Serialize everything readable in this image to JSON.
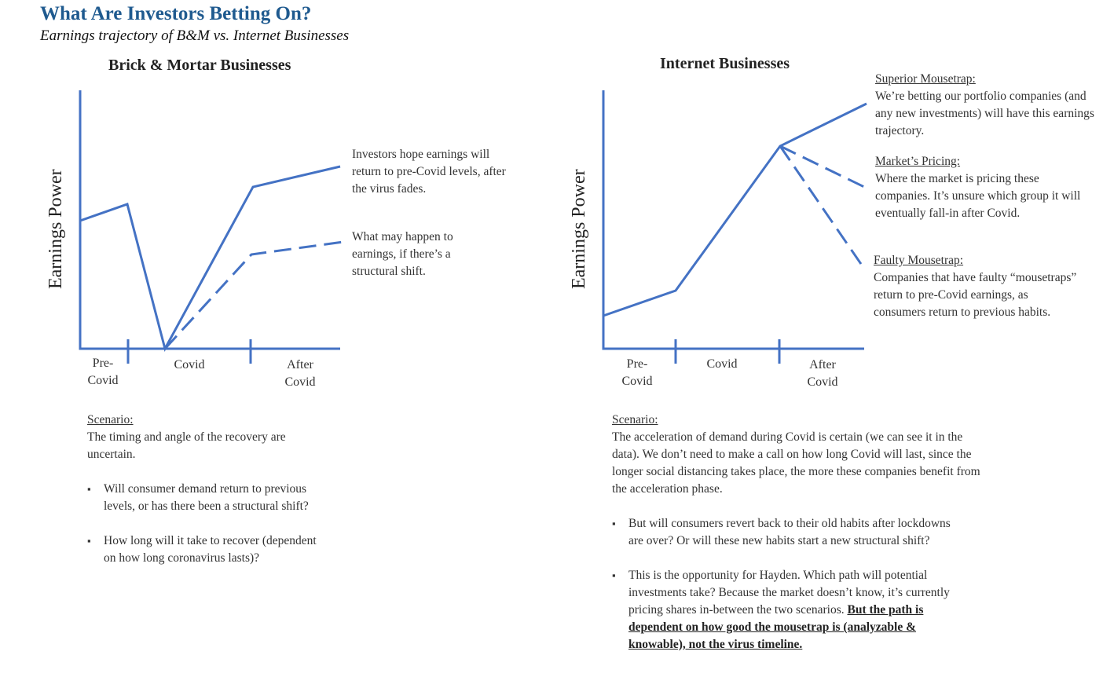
{
  "header": {
    "title": "What Are Investors Betting On?",
    "subtitle": "Earnings trajectory of B&M vs. Internet Businesses"
  },
  "left": {
    "chart_title": "Brick & Mortar Businesses",
    "ylabel": "Earnings Power",
    "ticks": [
      "Pre-\nCovid",
      "Covid",
      "After\nCovid"
    ],
    "notes": [
      "Investors hope earnings will return to pre-Covid levels, after the virus fades.",
      "What may happen to earnings, if there’s a structural shift."
    ],
    "scenario_label": "Scenario:",
    "scenario_text": "The timing and angle of  the recovery are uncertain.",
    "bullets": [
      "Will consumer demand return to previous levels, or has there been a structural shift?",
      "How long will it take to recover (dependent on how long coronavirus lasts)?"
    ]
  },
  "right": {
    "chart_title": "Internet Businesses",
    "ylabel": "Earnings Power",
    "ticks": [
      "Pre-\nCovid",
      "Covid",
      "After\nCovid"
    ],
    "notes": [
      {
        "label": "Superior Mousetrap:",
        "text": "We’re betting our portfolio companies (and any new investments) will have this earnings trajectory."
      },
      {
        "label": "Market’s Pricing:",
        "text": "Where the market is pricing these companies.  It’s unsure which group it will eventually fall-in after Covid."
      },
      {
        "label": "Faulty Mousetrap:",
        "text": "Companies that have faulty “mousetraps” return to pre-Covid earnings, as consumers return to previous habits."
      }
    ],
    "scenario_label": "Scenario:",
    "scenario_text": "The acceleration of demand during Covid is certain (we can see it in the data).  We don’t need to make a call on how long Covid will last, since the longer social distancing takes place, the more these companies benefit from the acceleration phase.",
    "bullets": [
      "But will consumers revert back to their old habits after lockdowns are over?  Or will these new habits start a new structural shift?"
    ],
    "bullet2_plain": "This is the opportunity for Hayden.  Which path will potential investments take?  Because the market doesn’t know, it’s currently pricing shares in-between the two scenarios. ",
    "bullet2_bold": "But the path is dependent on how good the mousetrap is (analyzable & knowable), not the virus timeline."
  },
  "colors": {
    "title": "#1f5a8f",
    "line": "#4472c4"
  }
}
